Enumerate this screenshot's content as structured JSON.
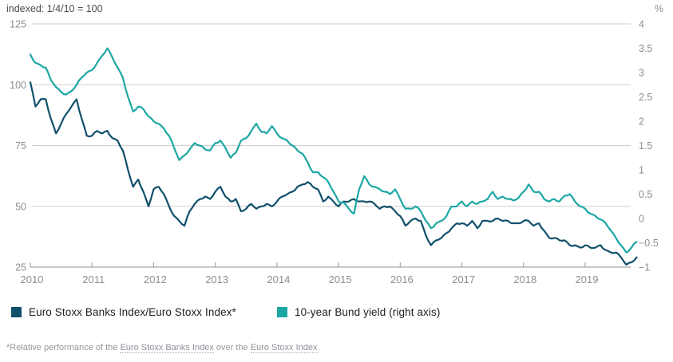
{
  "header": {
    "left_label": "indexed: 1/4/10 = 100",
    "right_label": "%"
  },
  "colors": {
    "banks_line": "#11506b",
    "bund_line": "#1ba7a4",
    "gridline": "#cfcfcf",
    "axis_line": "#a6a6a6",
    "tick_label": "#8f8f8f"
  },
  "chart_data": {
    "type": "line",
    "title": "",
    "x_unit": "month",
    "x_start": "2010-01",
    "x_end": "2019-11",
    "x_tick_labels": [
      "2010",
      "2011",
      "2012",
      "2013",
      "2014",
      "2015",
      "2016",
      "2017",
      "2018",
      "2019"
    ],
    "left_axis": {
      "label": "indexed: 1/4/10 = 100",
      "ticks": [
        125,
        100,
        75,
        50,
        25
      ],
      "range": [
        25,
        125
      ],
      "grid": true
    },
    "right_axis": {
      "label": "%",
      "ticks": [
        4,
        3.5,
        3,
        2.5,
        2,
        1.5,
        1,
        0.5,
        0,
        -0.5,
        -1
      ],
      "range": [
        -1,
        4
      ]
    },
    "legend_position": "bottom",
    "series": [
      {
        "name": "Euro Stoxx Banks Index/Euro Stoxx Index*",
        "axis": "left",
        "color": "#11506b",
        "values": [
          101,
          91,
          94,
          94,
          86,
          80,
          84,
          88,
          91,
          94,
          86,
          79,
          79,
          81,
          80,
          81,
          78,
          77,
          73,
          65,
          58,
          61,
          56,
          50,
          57,
          58,
          55,
          50,
          46,
          44,
          42,
          48,
          51,
          53,
          54,
          53,
          56,
          58,
          54,
          52,
          53,
          48,
          49,
          51,
          49,
          50,
          51,
          50,
          52,
          54,
          55,
          56,
          58,
          59,
          60,
          58,
          57,
          52,
          54,
          52,
          50,
          52,
          52,
          53,
          52,
          52,
          52,
          51,
          49,
          50,
          50,
          48,
          46,
          42,
          44,
          45,
          44,
          38,
          34,
          36,
          37,
          39,
          41,
          43,
          43,
          42,
          44,
          41,
          44,
          44,
          44,
          45,
          44,
          44,
          43,
          43,
          44,
          44,
          42,
          43,
          40,
          37,
          37,
          36,
          36,
          34,
          34,
          33,
          34,
          33,
          33,
          34,
          32,
          31,
          31,
          29,
          26,
          27,
          29
        ]
      },
      {
        "name": "10-year Bund yield (right axis)",
        "axis": "right",
        "color": "#1ba7a4",
        "values": [
          3.37,
          3.2,
          3.15,
          3.1,
          2.85,
          2.7,
          2.6,
          2.55,
          2.62,
          2.75,
          2.9,
          3.0,
          3.05,
          3.2,
          3.35,
          3.5,
          3.3,
          3.1,
          2.9,
          2.5,
          2.2,
          2.3,
          2.25,
          2.1,
          2.0,
          1.95,
          1.85,
          1.7,
          1.45,
          1.2,
          1.3,
          1.42,
          1.55,
          1.5,
          1.42,
          1.4,
          1.55,
          1.6,
          1.45,
          1.25,
          1.35,
          1.6,
          1.65,
          1.8,
          1.95,
          1.78,
          1.75,
          1.9,
          1.75,
          1.65,
          1.6,
          1.5,
          1.4,
          1.33,
          1.15,
          0.95,
          0.95,
          0.85,
          0.75,
          0.55,
          0.35,
          0.33,
          0.2,
          0.1,
          0.6,
          0.87,
          0.7,
          0.65,
          0.6,
          0.55,
          0.5,
          0.6,
          0.4,
          0.2,
          0.2,
          0.25,
          0.15,
          -0.05,
          -0.2,
          -0.1,
          -0.05,
          0.05,
          0.25,
          0.25,
          0.35,
          0.25,
          0.35,
          0.3,
          0.35,
          0.4,
          0.55,
          0.4,
          0.45,
          0.4,
          0.37,
          0.42,
          0.55,
          0.7,
          0.55,
          0.55,
          0.4,
          0.35,
          0.4,
          0.35,
          0.47,
          0.5,
          0.35,
          0.25,
          0.2,
          0.1,
          0.05,
          -0.02,
          -0.1,
          -0.25,
          -0.4,
          -0.55,
          -0.7,
          -0.6,
          -0.48
        ]
      }
    ]
  },
  "legend": {
    "items": [
      {
        "label": "Euro Stoxx Banks Index/Euro Stoxx Index*",
        "color": "#11506b"
      },
      {
        "label": "10-year Bund yield (right axis)",
        "color": "#1ba7a4"
      }
    ]
  },
  "footnote": {
    "prefix": "*Relative performance of the ",
    "link1": "Euro Stoxx Banks Index",
    "middle": " over the ",
    "link2": "Euro Stoxx Index"
  }
}
